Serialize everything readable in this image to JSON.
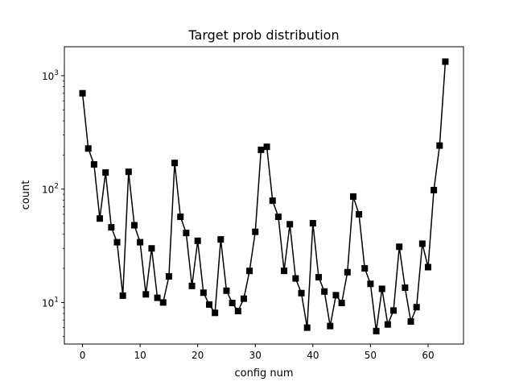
{
  "chart_data": {
    "type": "line",
    "title": "Target prob distribution",
    "xlabel": "config num",
    "ylabel": "count",
    "xlim": [
      -3.15,
      66.15
    ],
    "ylim": [
      4.3,
      1800
    ],
    "yscale": "log",
    "grid": false,
    "marker": "square",
    "line_color": "#000000",
    "x_ticks": [
      {
        "value": 0,
        "label": "0"
      },
      {
        "value": 10,
        "label": "10"
      },
      {
        "value": 20,
        "label": "20"
      },
      {
        "value": 30,
        "label": "30"
      },
      {
        "value": 40,
        "label": "40"
      },
      {
        "value": 50,
        "label": "50"
      },
      {
        "value": 60,
        "label": "60"
      }
    ],
    "y_ticks": [
      {
        "value": 10,
        "base": "10",
        "exp": "1"
      },
      {
        "value": 100,
        "base": "10",
        "exp": "2"
      },
      {
        "value": 1000,
        "base": "10",
        "exp": "3"
      }
    ],
    "y_minor_ticks": [
      5,
      6,
      7,
      8,
      9,
      20,
      30,
      40,
      50,
      60,
      70,
      80,
      90,
      200,
      300,
      400,
      500,
      600,
      700,
      800,
      900
    ],
    "series": [
      {
        "x": [
          0,
          1,
          2,
          3,
          4,
          5,
          6,
          7,
          8,
          9,
          10,
          11,
          12,
          13,
          14,
          15,
          16,
          17,
          18,
          19,
          20,
          21,
          22,
          23,
          24,
          25,
          26,
          27,
          28,
          29,
          30,
          31,
          32,
          33,
          34,
          35,
          36,
          37,
          38,
          39,
          40,
          41,
          42,
          43,
          44,
          45,
          46,
          47,
          48,
          49,
          50,
          51,
          52,
          53,
          54,
          55,
          56,
          57,
          58,
          59,
          60,
          61,
          62,
          63
        ],
        "values": [
          700,
          228,
          165,
          55,
          140,
          46,
          34,
          11.5,
          142,
          48,
          34,
          11.8,
          30,
          11,
          10,
          17,
          170,
          57,
          41,
          14,
          35,
          12.2,
          9.6,
          8.1,
          36,
          12.7,
          9.9,
          8.4,
          10.8,
          19,
          42,
          222,
          236,
          79,
          57,
          19,
          49,
          16.3,
          12.1,
          6,
          50,
          16.7,
          12.5,
          6.2,
          11.6,
          9.9,
          18.5,
          86,
          60,
          20,
          14.6,
          5.6,
          13.2,
          6.4,
          8.5,
          31,
          13.5,
          6.8,
          9.1,
          33,
          20.5,
          98,
          242,
          1330
        ]
      }
    ]
  }
}
